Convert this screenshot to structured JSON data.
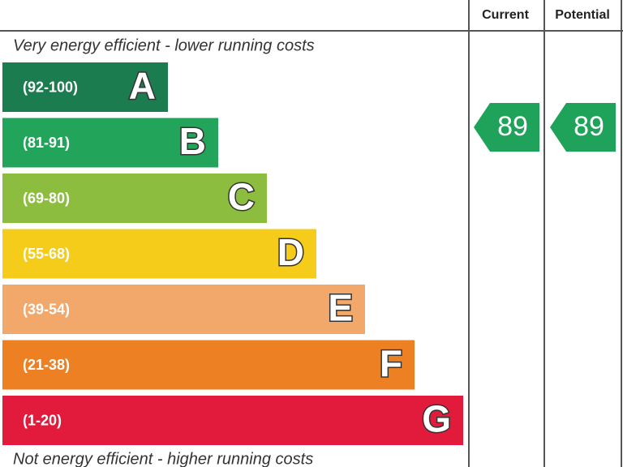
{
  "header": {
    "current": "Current",
    "potential": "Potential"
  },
  "top_note": "Very energy efficient - lower running costs",
  "bottom_note": "Not energy efficient - higher running costs",
  "bands": [
    {
      "range": "(92-100)",
      "letter": "A",
      "color": "#1b7d4f"
    },
    {
      "range": "(81-91)",
      "letter": "B",
      "color": "#22a55a"
    },
    {
      "range": "(69-80)",
      "letter": "C",
      "color": "#8cbd3f"
    },
    {
      "range": "(55-68)",
      "letter": "D",
      "color": "#f5cc19"
    },
    {
      "range": "(39-54)",
      "letter": "E",
      "color": "#f2a86b"
    },
    {
      "range": "(21-38)",
      "letter": "F",
      "color": "#ec8023"
    },
    {
      "range": "(1-20)",
      "letter": "G",
      "color": "#e21b3c"
    }
  ],
  "current": {
    "score": "89"
  },
  "potential": {
    "score": "89"
  }
}
